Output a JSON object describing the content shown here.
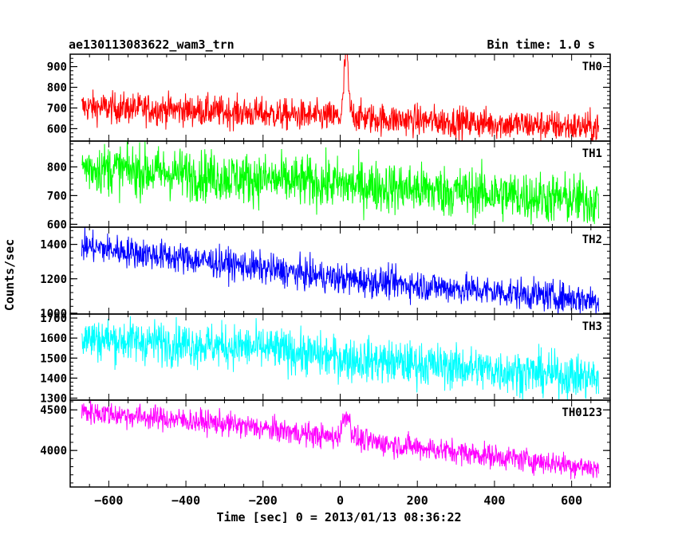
{
  "header": {
    "title": "ae130113083622_wam3_trn",
    "bin_time": "Bin time: 1.0 s"
  },
  "chart_data": {
    "type": "line",
    "xlabel": "Time [sec] 0 = 2013/01/13 08:36:22",
    "ylabel": "Counts/sec",
    "xlim": [
      -700,
      700
    ],
    "xticks": [
      -600,
      -400,
      -200,
      0,
      200,
      400,
      600
    ],
    "xtick_labels": [
      "−600",
      "−400",
      "−200",
      "0",
      "200",
      "400",
      "600"
    ],
    "x_range": [
      -670,
      670
    ],
    "bin": 1.0,
    "panels": [
      {
        "name": "TH0",
        "color": "#ff0000",
        "ylim": [
          540,
          960
        ],
        "yticks": [
          600,
          700,
          800,
          900
        ],
        "ytick_labels": [
          "600",
          "700",
          "800",
          "900"
        ],
        "trend": {
          "x": [
            -670,
            -400,
            0,
            670
          ],
          "y": [
            705,
            690,
            655,
            605
          ]
        },
        "noise": 38,
        "burst": {
          "x": 15,
          "peak": 960,
          "width": 5,
          "tail": 120
        }
      },
      {
        "name": "TH1",
        "color": "#00ff00",
        "ylim": [
          590,
          890
        ],
        "yticks": [
          600,
          700,
          800
        ],
        "ytick_labels": [
          "600",
          "700",
          "800"
        ],
        "trend": {
          "x": [
            -670,
            -300,
            0,
            670
          ],
          "y": [
            800,
            765,
            740,
            680
          ]
        },
        "noise": 45,
        "burst": null
      },
      {
        "name": "TH2",
        "color": "#0000ff",
        "ylim": [
          995,
          1500
        ],
        "yticks": [
          1000,
          1200,
          1400
        ],
        "ytick_labels": [
          "1000",
          "1200",
          "1400"
        ],
        "trend": {
          "x": [
            -670,
            -300,
            0,
            670
          ],
          "y": [
            1390,
            1290,
            1200,
            1075
          ]
        },
        "noise": 45,
        "burst": null
      },
      {
        "name": "TH3",
        "color": "#00ffff",
        "ylim": [
          1290,
          1720
        ],
        "yticks": [
          1300,
          1400,
          1500,
          1600,
          1700
        ],
        "ytick_labels": [
          "1300",
          "1400",
          "1500",
          "1600",
          "1700"
        ],
        "trend": {
          "x": [
            -670,
            -200,
            0,
            670
          ],
          "y": [
            1600,
            1550,
            1500,
            1400
          ]
        },
        "noise": 55,
        "burst": null
      },
      {
        "name": "TH0123",
        "color": "#ff00ff",
        "ylim": [
          3550,
          4620
        ],
        "yticks": [
          4000,
          4500
        ],
        "ytick_labels": [
          "4000",
          "4500"
        ],
        "trend": {
          "x": [
            -670,
            -300,
            0,
            670
          ],
          "y": [
            4480,
            4330,
            4150,
            3780
          ]
        },
        "noise": 75,
        "burst": {
          "x": 15,
          "peak": 4420,
          "width": 10,
          "tail": 170
        }
      }
    ]
  }
}
